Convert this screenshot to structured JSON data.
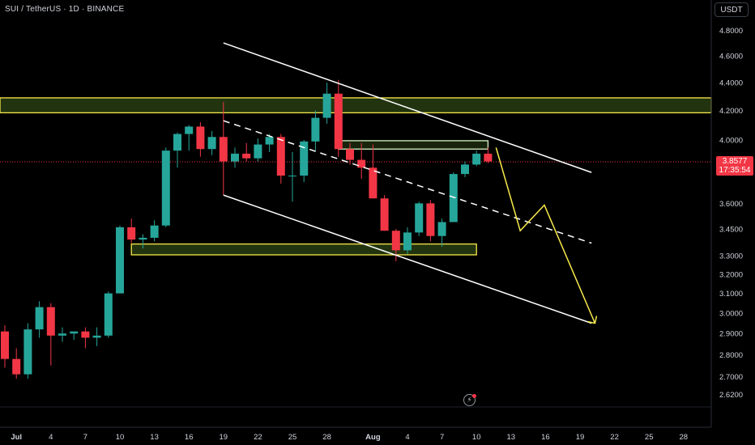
{
  "header": {
    "symbol": "SUI / TetherUS · 1D · BINANCE",
    "currency": "USDT"
  },
  "last_price": {
    "price": "3.8577",
    "countdown": "17:35:54",
    "value": 3.8577
  },
  "colors": {
    "bull": "#26a69a",
    "bear": "#f23645",
    "zone_fill": "#2d4614",
    "zone_border": "#f7e94b",
    "trend_line": "#ffffff",
    "projection": "#f7e94b"
  },
  "icons": {
    "flash": "lightning-icon"
  },
  "chart_data": {
    "type": "candlestick",
    "y_scale": "log",
    "x_axis": {
      "labels": [
        "Jul",
        "4",
        "7",
        "10",
        "13",
        "16",
        "19",
        "22",
        "25",
        "28",
        "Aug",
        "4",
        "7",
        "10",
        "13",
        "16",
        "19",
        "22",
        "25",
        "28"
      ],
      "bold_labels": [
        "Jul",
        "Aug"
      ]
    },
    "y_axis": {
      "ticks": [
        "4.8000",
        "4.6000",
        "4.4000",
        "4.2000",
        "4.0000",
        "3.6000",
        "3.4500",
        "3.3000",
        "3.2000",
        "3.1000",
        "3.0000",
        "2.9000",
        "2.8000",
        "2.7000",
        "2.6200"
      ],
      "range": [
        2.58,
        4.95
      ]
    },
    "candles": [
      {
        "date": "Jun 30",
        "o": 2.91,
        "h": 2.94,
        "l": 2.74,
        "c": 2.78
      },
      {
        "date": "Jul 1",
        "o": 2.78,
        "h": 2.83,
        "l": 2.69,
        "c": 2.71
      },
      {
        "date": "Jul 2",
        "o": 2.71,
        "h": 2.95,
        "l": 2.69,
        "c": 2.92
      },
      {
        "date": "Jul 3",
        "o": 2.92,
        "h": 3.06,
        "l": 2.88,
        "c": 3.03
      },
      {
        "date": "Jul 4",
        "o": 3.03,
        "h": 3.05,
        "l": 2.75,
        "c": 2.89
      },
      {
        "date": "Jul 5",
        "o": 2.89,
        "h": 2.93,
        "l": 2.86,
        "c": 2.9
      },
      {
        "date": "Jul 6",
        "o": 2.9,
        "h": 2.91,
        "l": 2.87,
        "c": 2.91
      },
      {
        "date": "Jul 7",
        "o": 2.91,
        "h": 2.93,
        "l": 2.83,
        "c": 2.88
      },
      {
        "date": "Jul 8",
        "o": 2.88,
        "h": 2.93,
        "l": 2.84,
        "c": 2.89
      },
      {
        "date": "Jul 9",
        "o": 2.89,
        "h": 3.11,
        "l": 2.88,
        "c": 3.1
      },
      {
        "date": "Jul 10",
        "o": 3.1,
        "h": 3.47,
        "l": 3.1,
        "c": 3.46
      },
      {
        "date": "Jul 11",
        "o": 3.46,
        "h": 3.51,
        "l": 3.37,
        "c": 3.39
      },
      {
        "date": "Jul 12",
        "o": 3.39,
        "h": 3.42,
        "l": 3.34,
        "c": 3.4
      },
      {
        "date": "Jul 13",
        "o": 3.4,
        "h": 3.5,
        "l": 3.38,
        "c": 3.47
      },
      {
        "date": "Jul 14",
        "o": 3.47,
        "h": 3.95,
        "l": 3.46,
        "c": 3.93
      },
      {
        "date": "Jul 15",
        "o": 3.93,
        "h": 4.05,
        "l": 3.82,
        "c": 4.04
      },
      {
        "date": "Jul 16",
        "o": 4.04,
        "h": 4.1,
        "l": 3.93,
        "c": 4.09
      },
      {
        "date": "Jul 17",
        "o": 4.09,
        "h": 4.12,
        "l": 3.89,
        "c": 3.94
      },
      {
        "date": "Jul 18",
        "o": 3.94,
        "h": 4.06,
        "l": 3.9,
        "c": 4.02
      },
      {
        "date": "Jul 19",
        "o": 4.02,
        "h": 4.26,
        "l": 3.65,
        "c": 3.86
      },
      {
        "date": "Jul 20",
        "o": 3.86,
        "h": 3.95,
        "l": 3.82,
        "c": 3.91
      },
      {
        "date": "Jul 21",
        "o": 3.91,
        "h": 3.98,
        "l": 3.86,
        "c": 3.88
      },
      {
        "date": "Jul 22",
        "o": 3.88,
        "h": 4.01,
        "l": 3.86,
        "c": 3.97
      },
      {
        "date": "Jul 23",
        "o": 3.97,
        "h": 4.04,
        "l": 3.92,
        "c": 4.02
      },
      {
        "date": "Jul 24",
        "o": 4.02,
        "h": 4.04,
        "l": 3.72,
        "c": 3.77
      },
      {
        "date": "Jul 25",
        "o": 3.77,
        "h": 3.92,
        "l": 3.61,
        "c": 3.77
      },
      {
        "date": "Jul 26",
        "o": 3.77,
        "h": 4.0,
        "l": 3.73,
        "c": 3.99
      },
      {
        "date": "Jul 27",
        "o": 3.99,
        "h": 4.2,
        "l": 3.93,
        "c": 4.15
      },
      {
        "date": "Jul 28",
        "o": 4.15,
        "h": 4.4,
        "l": 4.11,
        "c": 4.32
      },
      {
        "date": "Jul 29",
        "o": 4.32,
        "h": 4.42,
        "l": 3.89,
        "c": 3.94
      },
      {
        "date": "Jul 30",
        "o": 3.94,
        "h": 3.98,
        "l": 3.84,
        "c": 3.87
      },
      {
        "date": "Jul 31",
        "o": 3.87,
        "h": 3.98,
        "l": 3.75,
        "c": 3.82
      },
      {
        "date": "Aug 1",
        "o": 3.82,
        "h": 3.97,
        "l": 3.63,
        "c": 3.63
      },
      {
        "date": "Aug 2",
        "o": 3.63,
        "h": 3.65,
        "l": 3.44,
        "c": 3.44
      },
      {
        "date": "Aug 3",
        "o": 3.44,
        "h": 3.45,
        "l": 3.27,
        "c": 3.33
      },
      {
        "date": "Aug 4",
        "o": 3.33,
        "h": 3.46,
        "l": 3.31,
        "c": 3.43
      },
      {
        "date": "Aug 5",
        "o": 3.43,
        "h": 3.61,
        "l": 3.41,
        "c": 3.6
      },
      {
        "date": "Aug 6",
        "o": 3.6,
        "h": 3.62,
        "l": 3.38,
        "c": 3.41
      },
      {
        "date": "Aug 7",
        "o": 3.41,
        "h": 3.51,
        "l": 3.35,
        "c": 3.49
      },
      {
        "date": "Aug 8",
        "o": 3.49,
        "h": 3.79,
        "l": 3.49,
        "c": 3.78
      },
      {
        "date": "Aug 9",
        "o": 3.78,
        "h": 3.86,
        "l": 3.76,
        "c": 3.84
      },
      {
        "date": "Aug 10",
        "o": 3.84,
        "h": 3.93,
        "l": 3.83,
        "c": 3.91
      },
      {
        "date": "Aug 11",
        "o": 3.91,
        "h": 3.95,
        "l": 3.85,
        "c": 3.86
      }
    ],
    "zones": [
      {
        "from_index": -1,
        "to_index": 68,
        "top": 4.29,
        "bottom": 4.185
      },
      {
        "from_index": 11,
        "to_index": 41,
        "top": 3.365,
        "bottom": 3.305
      },
      {
        "from_index": 29,
        "to_index": 42,
        "top": 3.995,
        "bottom": 3.94
      }
    ],
    "trend_lines": [
      {
        "style": "solid",
        "from": {
          "index": 19,
          "price": 4.7
        },
        "to": {
          "index": 51,
          "price": 3.79
        }
      },
      {
        "style": "solid",
        "from": {
          "index": 19,
          "price": 3.65
        },
        "to": {
          "index": 51,
          "price": 2.95
        }
      },
      {
        "style": "dashed",
        "from": {
          "index": 19,
          "price": 4.13
        },
        "to": {
          "index": 51,
          "price": 3.37
        }
      }
    ],
    "projection": [
      {
        "index": 42.7,
        "price": 3.95
      },
      {
        "index": 44.8,
        "price": 3.44
      },
      {
        "index": 46.9,
        "price": 3.59
      },
      {
        "index": 51.3,
        "price": 2.95
      }
    ]
  }
}
